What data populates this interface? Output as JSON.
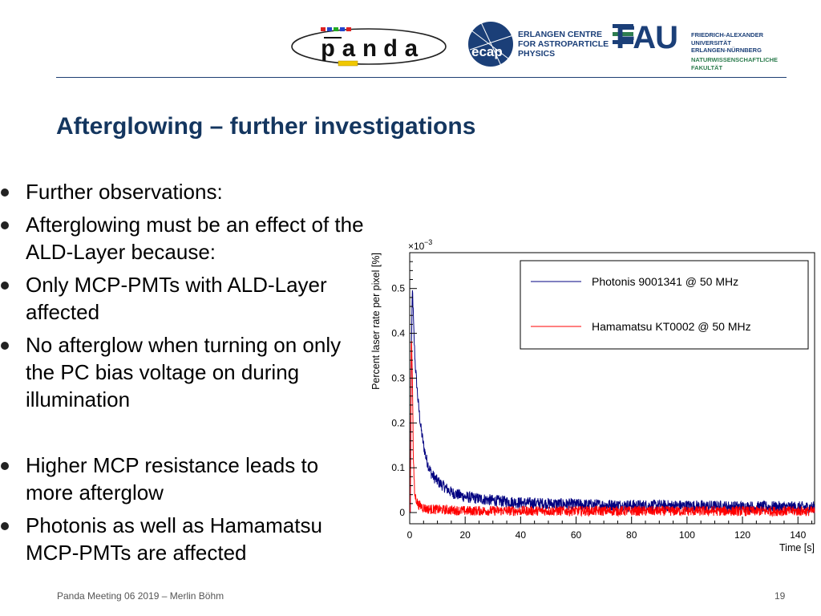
{
  "header": {
    "panda_logo": "panda",
    "ecap_logo_mark": "ecap",
    "ecap_name_lines": [
      "ERLANGEN CENTRE",
      "FOR ASTROPARTICLE",
      "PHYSICS"
    ],
    "fau_logo": "FAU",
    "fau_name_lines": [
      "FRIEDRICH-ALEXANDER",
      "UNIVERSITÄT",
      "ERLANGEN-NÜRNBERG"
    ],
    "fau_faculty_lines": [
      "NATURWISSENSCHAFTLICHE",
      "FAKULTÄT"
    ]
  },
  "slide": {
    "title": "Afterglowing – further investigations",
    "bullets": [
      [
        "Further observations:"
      ],
      [
        "Afterglowing must be an effect of the",
        "ALD-Layer because:"
      ],
      [
        "Only MCP-PMTs with ALD-Layer",
        "affected"
      ],
      [
        "No afterglow when turning on only",
        "the PC bias voltage on during",
        "illumination"
      ],
      [
        ""
      ],
      [
        "Higher MCP resistance leads to",
        "more afterglow"
      ],
      [
        "Photonis as well as Hamamatsu",
        "MCP-PMTs are affected"
      ]
    ]
  },
  "footer": {
    "left": "Panda Meeting 06 2019 – Merlin Böhm",
    "page_number": "19"
  },
  "chart_data": {
    "type": "line",
    "title": "",
    "xlabel": "Time [s]",
    "ylabel": "Percent laser rate per pixel [%]",
    "y_exponent_label": "×10",
    "y_exponent_power": "−3",
    "xlim": [
      0,
      146
    ],
    "ylim": [
      -0.025,
      0.58
    ],
    "x_ticks": [
      0,
      20,
      40,
      60,
      80,
      100,
      120,
      140
    ],
    "y_ticks": [
      0,
      0.1,
      0.2,
      0.3,
      0.4,
      0.5
    ],
    "x_tick_labels": [
      "0",
      "20",
      "40",
      "60",
      "80",
      "100",
      "120",
      "140"
    ],
    "y_tick_labels": [
      "0",
      "0.1",
      "0.2",
      "0.3",
      "0.4",
      "0.5"
    ],
    "legend_position": "top-right",
    "series": [
      {
        "name": "Photonis 9001341 @ 50 MHz",
        "color": "#000080",
        "noise": 0.013,
        "points": [
          [
            0.2,
            0.0
          ],
          [
            0.6,
            0.37
          ],
          [
            1,
            0.5
          ],
          [
            1.5,
            0.4
          ],
          [
            2,
            0.33
          ],
          [
            3,
            0.25
          ],
          [
            4,
            0.19
          ],
          [
            5,
            0.15
          ],
          [
            6,
            0.12
          ],
          [
            7,
            0.1
          ],
          [
            8,
            0.085
          ],
          [
            10,
            0.07
          ],
          [
            12,
            0.06
          ],
          [
            15,
            0.045
          ],
          [
            20,
            0.035
          ],
          [
            30,
            0.027
          ],
          [
            40,
            0.022
          ],
          [
            60,
            0.018
          ],
          [
            80,
            0.016
          ],
          [
            100,
            0.015
          ],
          [
            120,
            0.013
          ],
          [
            146,
            0.012
          ]
        ]
      },
      {
        "name": "Hamamatsu KT0002 @ 50 MHz",
        "color": "#ff0000",
        "noise": 0.011,
        "points": [
          [
            0.2,
            0.0
          ],
          [
            0.6,
            0.4
          ],
          [
            1,
            0.3
          ],
          [
            1.3,
            0.12
          ],
          [
            1.8,
            0.04
          ],
          [
            3,
            0.018
          ],
          [
            6,
            0.008
          ],
          [
            20,
            0.004
          ],
          [
            146,
            0.003
          ]
        ]
      }
    ]
  }
}
